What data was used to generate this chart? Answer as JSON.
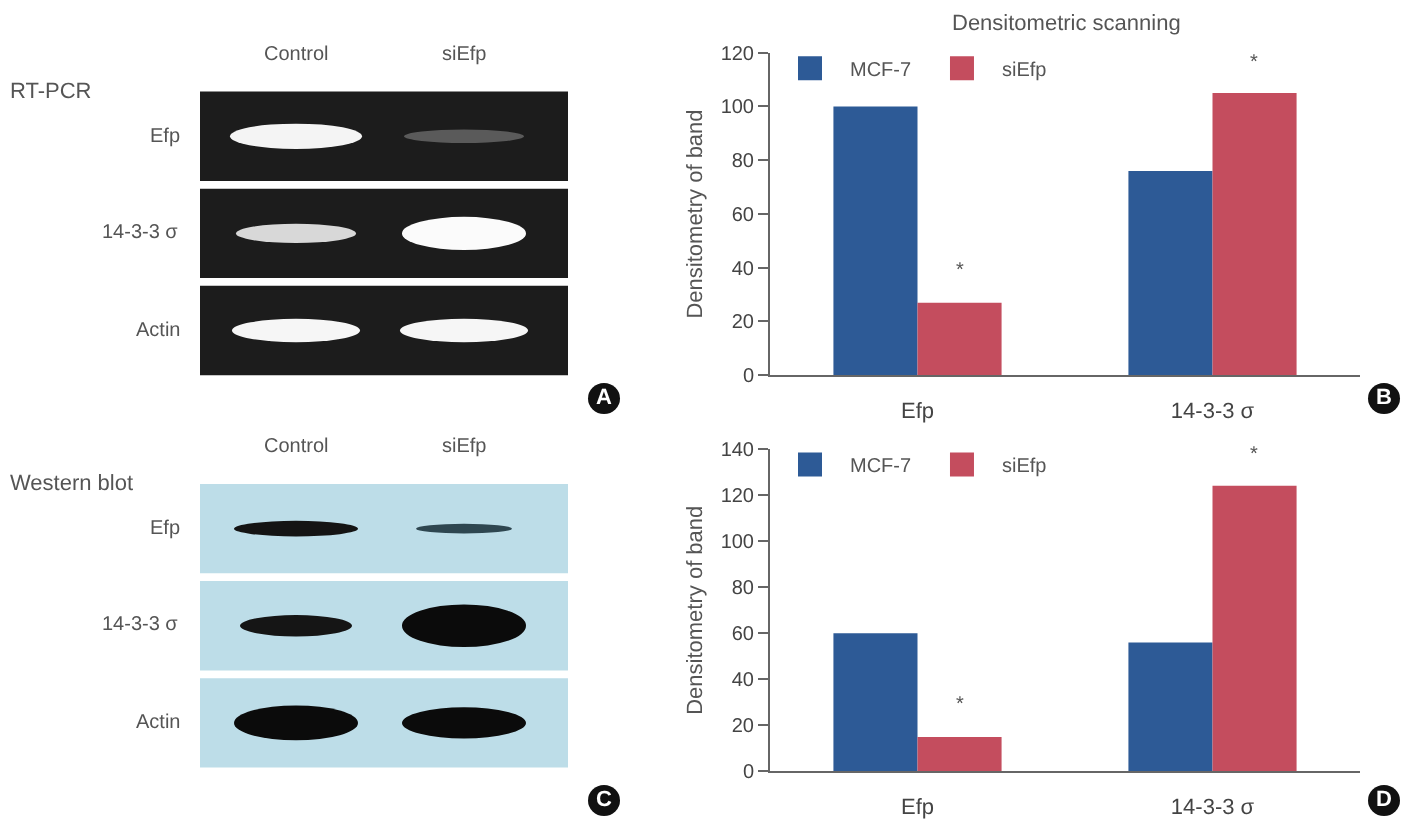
{
  "chart_data": [
    {
      "type": "other",
      "title": "RT-PCR",
      "annotations": [
        "Control",
        "siEfp",
        "Efp",
        "14-3-3 σ",
        "Actin",
        "A"
      ]
    },
    {
      "type": "bar",
      "title": "Densitometric scanning",
      "ylabel": "Densitometry of band",
      "categories": [
        "Efp",
        "14-3-3 σ"
      ],
      "series": [
        {
          "name": "MCF-7",
          "color": "#2d5a96",
          "values": [
            100,
            76
          ]
        },
        {
          "name": "siEfp",
          "color": "#c44d5e",
          "values": [
            27,
            105
          ]
        }
      ],
      "ylim": [
        0,
        120
      ],
      "yticks": [
        0,
        20,
        40,
        60,
        80,
        100,
        120
      ],
      "grid": false,
      "legend": "top left",
      "annotations": [
        {
          "text": "*",
          "x": "Efp",
          "y": 27
        },
        {
          "text": "*",
          "x": "14-3-3 σ",
          "y": 105
        },
        "B"
      ]
    },
    {
      "type": "other",
      "title": "Western blot",
      "annotations": [
        "Control",
        "siEfp",
        "Efp",
        "14-3-3 σ",
        "Actin",
        "C"
      ]
    },
    {
      "type": "bar",
      "ylabel": "Densitometry of band",
      "categories": [
        "Efp",
        "14-3-3 σ"
      ],
      "series": [
        {
          "name": "MCF-7",
          "color": "#2d5a96",
          "values": [
            60,
            56
          ]
        },
        {
          "name": "siEfp",
          "color": "#c44d5e",
          "values": [
            15,
            124
          ]
        }
      ],
      "ylim": [
        0,
        140
      ],
      "yticks": [
        0,
        20,
        40,
        60,
        80,
        100,
        120,
        140
      ],
      "grid": false,
      "legend": "top left",
      "annotations": [
        {
          "text": "*",
          "x": "Efp",
          "y": 15
        },
        {
          "text": "*",
          "x": "14-3-3 σ",
          "y": 124
        },
        "D"
      ]
    }
  ]
}
